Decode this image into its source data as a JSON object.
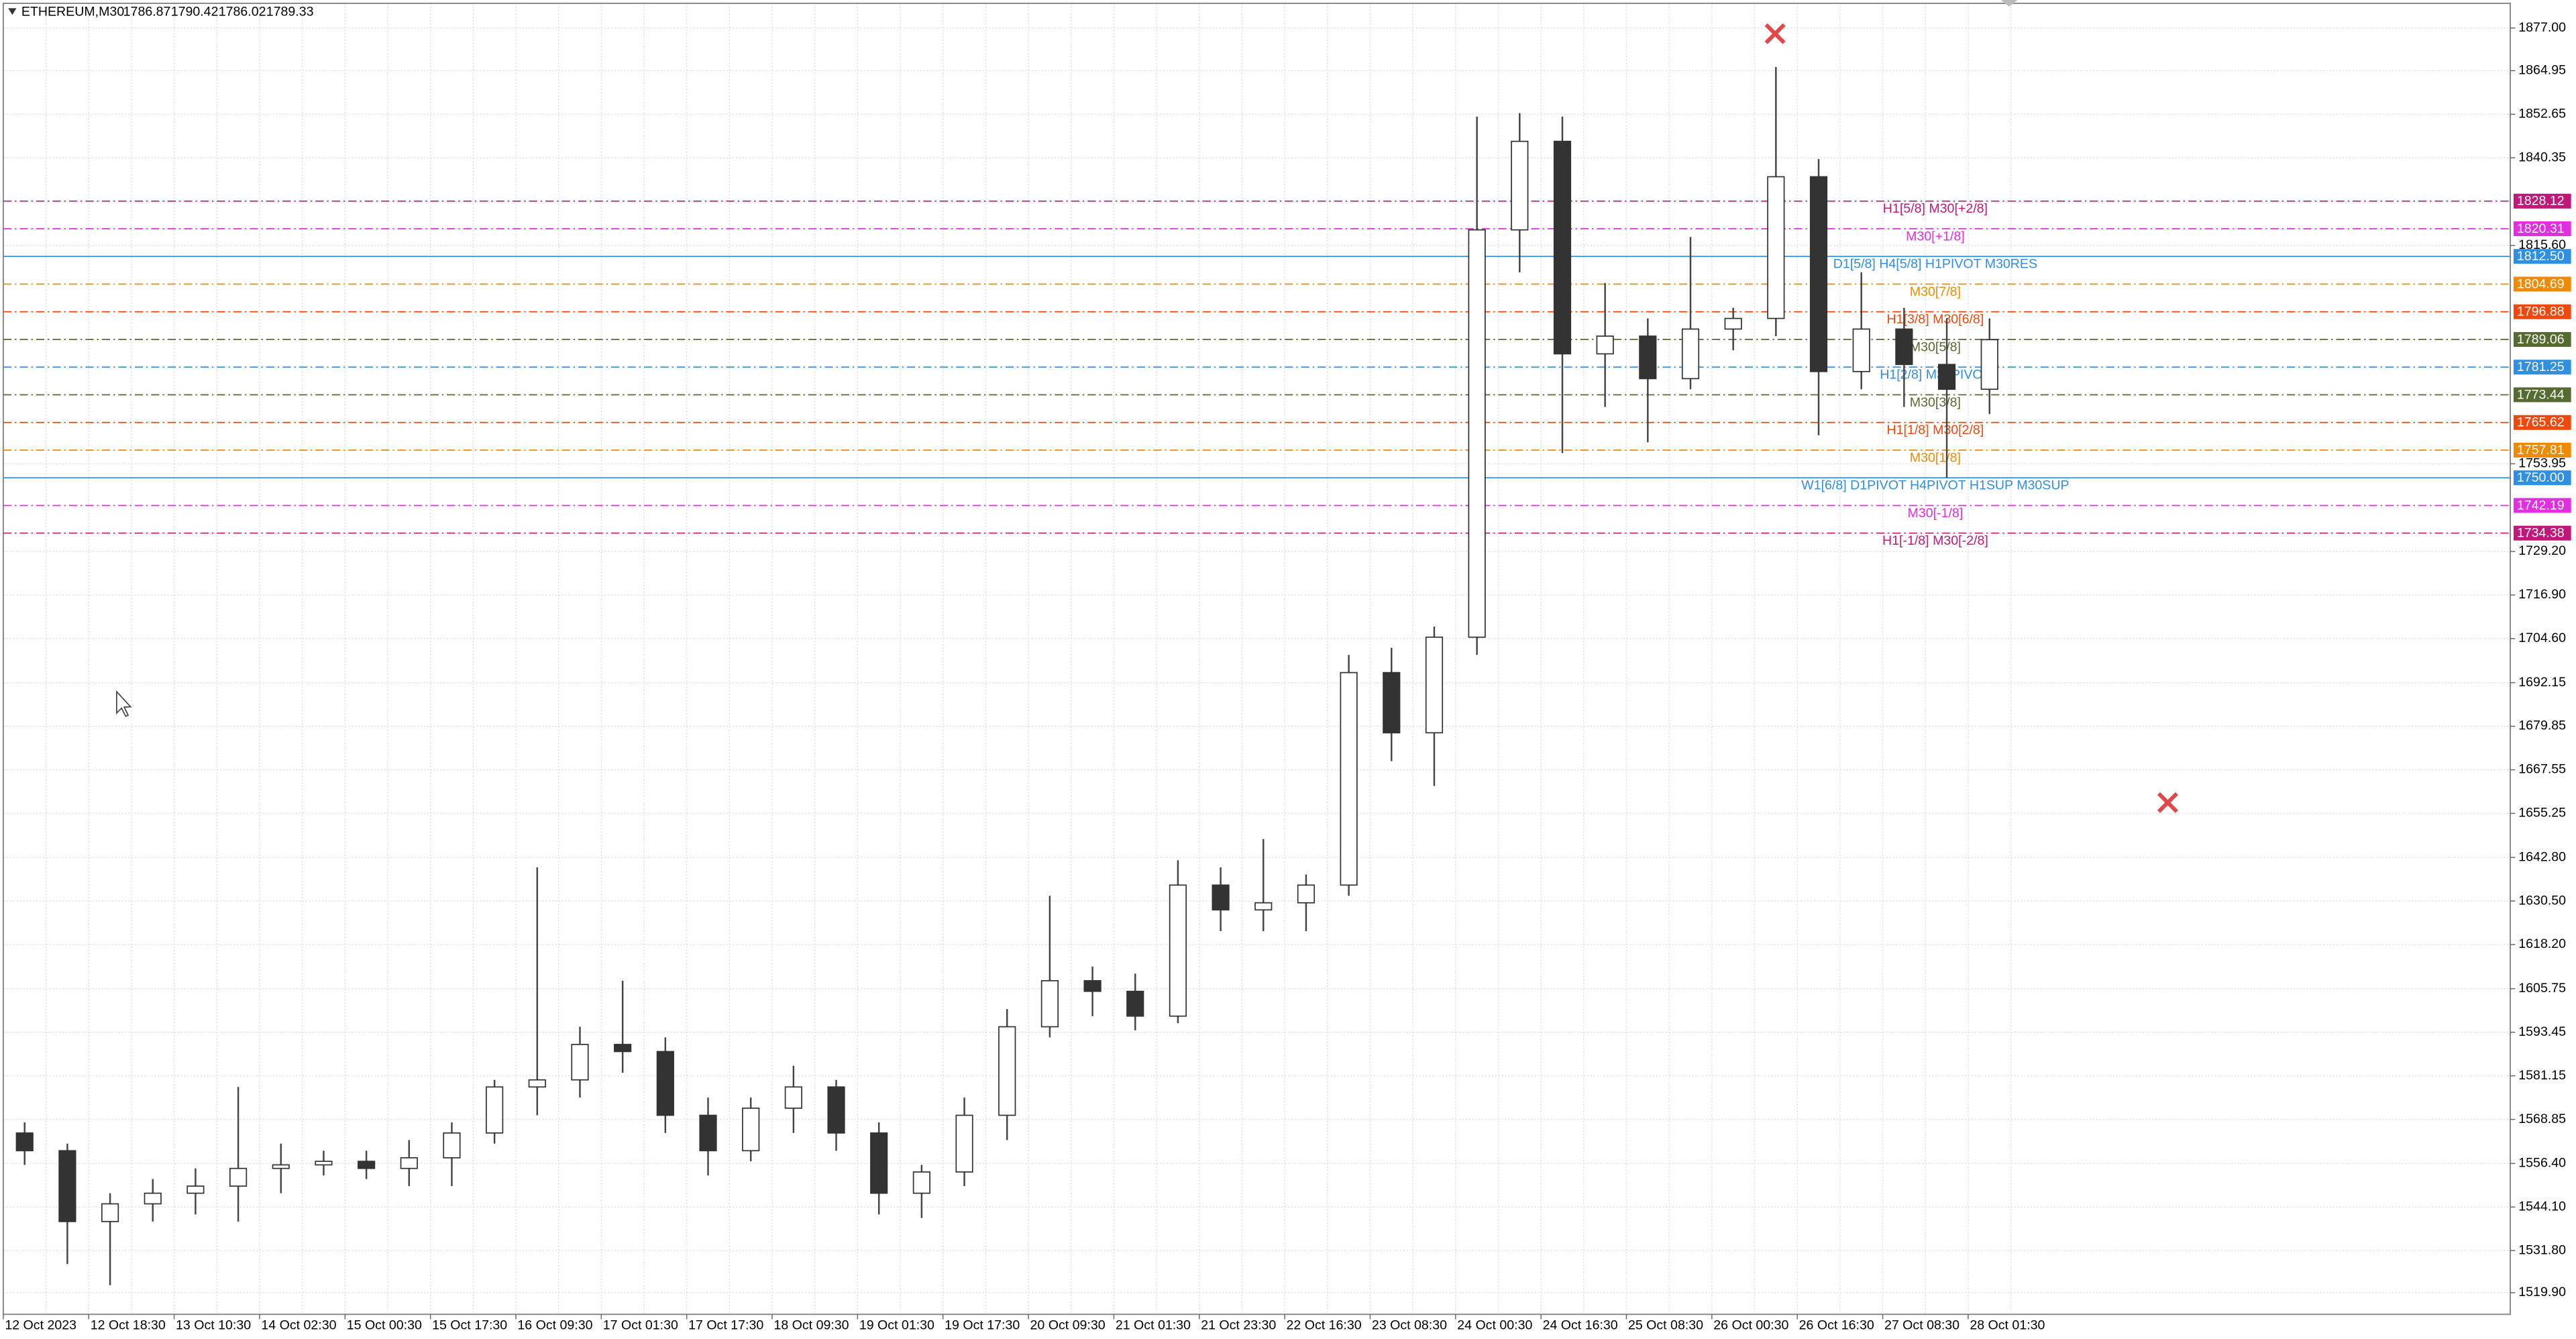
{
  "chart_data": {
    "type": "candlestick",
    "title": "ETHEREUM,M30",
    "quote": [
      1786.87,
      1790.42,
      1786.02,
      1789.33
    ],
    "categories": [
      "12 Oct 2023",
      null,
      "12 Oct 18:30",
      null,
      "13 Oct 10:30",
      null,
      "14 Oct 02:30",
      null,
      "15 Oct 00:30",
      null,
      "15 Oct 17:30",
      null,
      "16 Oct 09:30",
      null,
      "17 Oct 01:30",
      null,
      "17 Oct 17:30",
      null,
      "18 Oct 09:30",
      null,
      "19 Oct 01:30",
      null,
      "19 Oct 17:30",
      null,
      "20 Oct 09:30",
      null,
      "21 Oct 01:30",
      null,
      "21 Oct 23:30",
      null,
      "22 Oct 16:30",
      null,
      "23 Oct 08:30",
      null,
      "24 Oct 00:30",
      null,
      "24 Oct 16:30",
      null,
      "25 Oct 08:30",
      null,
      "26 Oct 00:30",
      null,
      "26 Oct 16:30",
      null,
      "27 Oct 08:30",
      null,
      "28 Oct 01:30"
    ],
    "open": [
      1565,
      1560,
      1540,
      1545,
      1548,
      1550,
      1555,
      1556,
      1557,
      1555,
      1558,
      1565,
      1578,
      1580,
      1590,
      1588,
      1570,
      1560,
      1572,
      1578,
      1565,
      1548,
      1554,
      1570,
      1595,
      1608,
      1605,
      1598,
      1635,
      1628,
      1630,
      1635,
      1695,
      1678,
      1705,
      1820,
      1845,
      1785,
      1790,
      1778,
      1792,
      1795,
      1835,
      1780,
      1792,
      1782,
      1775
    ],
    "high": [
      1568,
      1562,
      1548,
      1552,
      1555,
      1578,
      1562,
      1560,
      1560,
      1563,
      1568,
      1580,
      1640,
      1595,
      1608,
      1592,
      1575,
      1575,
      1584,
      1580,
      1568,
      1556,
      1575,
      1600,
      1632,
      1612,
      1610,
      1642,
      1640,
      1648,
      1638,
      1700,
      1702,
      1708,
      1852,
      1853,
      1852,
      1805,
      1795,
      1818,
      1798,
      1866,
      1840,
      1808,
      1798,
      1795,
      1795
    ],
    "low": [
      1556,
      1528,
      1522,
      1540,
      1542,
      1540,
      1548,
      1553,
      1552,
      1550,
      1550,
      1562,
      1570,
      1575,
      1582,
      1565,
      1553,
      1557,
      1565,
      1560,
      1542,
      1541,
      1550,
      1563,
      1592,
      1598,
      1594,
      1596,
      1622,
      1622,
      1622,
      1632,
      1670,
      1663,
      1700,
      1808,
      1757,
      1770,
      1760,
      1775,
      1786,
      1790,
      1762,
      1775,
      1770,
      1750,
      1768
    ],
    "close": [
      1560,
      1540,
      1545,
      1548,
      1550,
      1555,
      1556,
      1557,
      1555,
      1558,
      1565,
      1578,
      1580,
      1590,
      1588,
      1570,
      1560,
      1572,
      1578,
      1565,
      1548,
      1554,
      1570,
      1595,
      1608,
      1605,
      1598,
      1635,
      1628,
      1630,
      1635,
      1695,
      1678,
      1705,
      1820,
      1845,
      1785,
      1790,
      1778,
      1792,
      1795,
      1835,
      1780,
      1792,
      1782,
      1775,
      1789
    ],
    "ylim": [
      1513.8,
      1884.9
    ],
    "yticks": [
      {
        "value": 1877,
        "label": "1877.00"
      },
      {
        "value": 1864.95,
        "label": "1864.95"
      },
      {
        "value": 1852.65,
        "label": "1852.65"
      },
      {
        "value": 1840.35,
        "label": "1840.35"
      },
      {
        "value": 1815.6,
        "label": "1815.60"
      },
      {
        "value": 1753.95,
        "label": "1753.95"
      },
      {
        "value": 1729.2,
        "label": "1729.20"
      },
      {
        "value": 1716.9,
        "label": "1716.90"
      },
      {
        "value": 1704.6,
        "label": "1704.60"
      },
      {
        "value": 1692.15,
        "label": "1692.15"
      },
      {
        "value": 1679.85,
        "label": "1679.85"
      },
      {
        "value": 1667.55,
        "label": "1667.55"
      },
      {
        "value": 1655.25,
        "label": "1655.25"
      },
      {
        "value": 1642.8,
        "label": "1642.80"
      },
      {
        "value": 1630.5,
        "label": "1630.50"
      },
      {
        "value": 1618.2,
        "label": "1618.20"
      },
      {
        "value": 1605.75,
        "label": "1605.75"
      },
      {
        "value": 1593.45,
        "label": "1593.45"
      },
      {
        "value": 1581.15,
        "label": "1581.15"
      },
      {
        "value": 1568.85,
        "label": "1568.85"
      },
      {
        "value": 1556.4,
        "label": "1556.40"
      },
      {
        "value": 1544.1,
        "label": "1544.10"
      },
      {
        "value": 1531.8,
        "label": "1531.80"
      },
      {
        "value": 1519.9,
        "label": "1519.90"
      }
    ],
    "grid": true,
    "levels": [
      {
        "value": 1828.12,
        "price_label": "1828.12",
        "text": "H1[5/8] M30[+2/8]",
        "color": "#c0187a",
        "dashed": true
      },
      {
        "value": 1820.31,
        "price_label": "1820.31",
        "text": "M30[+1/8]",
        "color": "#e02ee0",
        "dashed": true
      },
      {
        "value": 1812.5,
        "price_label": "1812.50",
        "text": "D1[5/8] H4[5/8] H1PIVOT M30RES",
        "color": "#2f8fe0",
        "dashed": false
      },
      {
        "value": 1804.69,
        "price_label": "1804.69",
        "text": "M30[7/8]",
        "color": "#f08a00",
        "dashed": true
      },
      {
        "value": 1796.88,
        "price_label": "1796.88",
        "text": "H1[3/8] M30[6/8]",
        "color": "#f0480c",
        "dashed": true
      },
      {
        "value": 1789.06,
        "price_label": "1789.06",
        "text": "M30[5/8]",
        "color": "#556b2f",
        "dashed": true
      },
      {
        "value": 1781.25,
        "price_label": "1781.25",
        "text": "H1[2/8] M30PIVOT",
        "color": "#2f8fe0",
        "dashed": true
      },
      {
        "value": 1773.44,
        "price_label": "1773.44",
        "text": "M30[3/8]",
        "color": "#556b2f",
        "dashed": true
      },
      {
        "value": 1765.62,
        "price_label": "1765.62",
        "text": "H1[1/8] M30[2/8]",
        "color": "#f0480c",
        "dashed": true
      },
      {
        "value": 1757.81,
        "price_label": "1757.81",
        "text": "M30[1/8]",
        "color": "#f08a00",
        "dashed": true
      },
      {
        "value": 1750,
        "price_label": "1750.00",
        "text": "W1[6/8] D1PIVOT H4PIVOT H1SUP M30SUP",
        "color": "#2f8fe0",
        "dashed": false
      },
      {
        "value": 1742.19,
        "price_label": "1742.19",
        "text": "M30[-1/8]",
        "color": "#e02ee0",
        "dashed": true
      },
      {
        "value": 1734.38,
        "price_label": "1734.38",
        "text": "H1[-1/8] M30[-2/8]",
        "color": "#c0187a",
        "dashed": true
      }
    ]
  }
}
